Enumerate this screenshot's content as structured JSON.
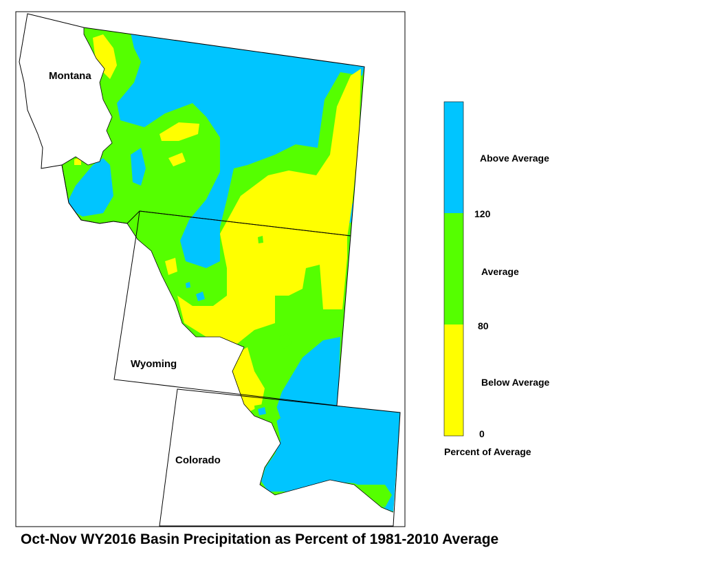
{
  "map": {
    "state_labels": {
      "montana": "Montana",
      "wyoming": "Wyoming",
      "colorado": "Colorado"
    }
  },
  "legend": {
    "categories": [
      {
        "label": "Above Average",
        "color": "#00c5ff"
      },
      {
        "label": "Average",
        "color": "#55ff00"
      },
      {
        "label": "Below Average",
        "color": "#ffff00"
      }
    ],
    "breaks": [
      "120",
      "80",
      "0"
    ],
    "caption": "Percent of Average"
  },
  "title": "Oct-Nov WY2016 Basin Precipitation as Percent of 1981-2010 Average"
}
